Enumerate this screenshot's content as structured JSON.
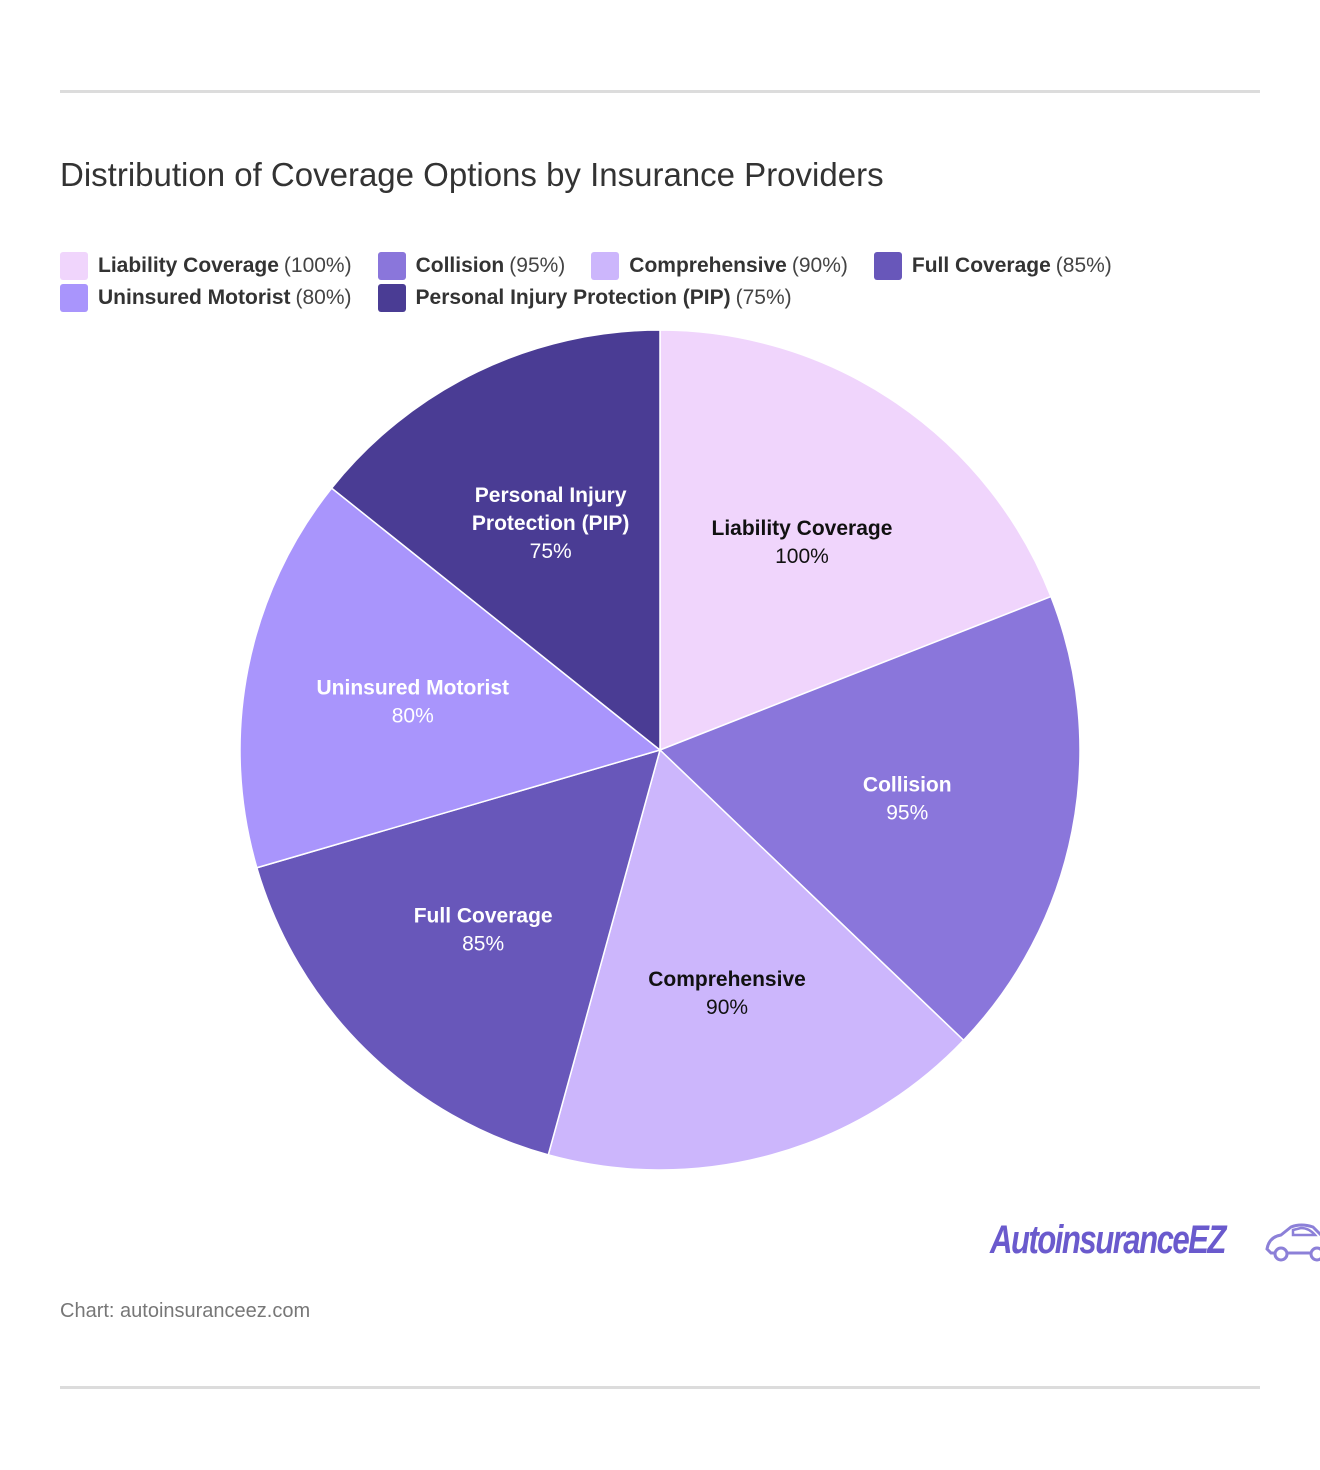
{
  "title": "Distribution of Coverage Options by Insurance Providers",
  "source": "Chart: autoinsuranceez.com",
  "logo": {
    "text": "AutoinsuranceEZ",
    "icon": "car-icon"
  },
  "chart_data": {
    "type": "pie",
    "title": "Distribution of Coverage Options by Insurance Providers",
    "legend_position": "top-left",
    "slices": [
      {
        "name": "Liability Coverage",
        "label_lines": [
          "Liability Coverage"
        ],
        "value": 100,
        "display": "100%",
        "color": "#f0d5fc",
        "text_color": "#111111"
      },
      {
        "name": "Collision",
        "label_lines": [
          "Collision"
        ],
        "value": 95,
        "display": "95%",
        "color": "#8a76db",
        "text_color": "#ffffff"
      },
      {
        "name": "Comprehensive",
        "label_lines": [
          "Comprehensive"
        ],
        "value": 90,
        "display": "90%",
        "color": "#ccb6fc",
        "text_color": "#111111"
      },
      {
        "name": "Full Coverage",
        "label_lines": [
          "Full Coverage"
        ],
        "value": 85,
        "display": "85%",
        "color": "#6857ba",
        "text_color": "#ffffff"
      },
      {
        "name": "Uninsured Motorist",
        "label_lines": [
          "Uninsured Motorist"
        ],
        "value": 80,
        "display": "80%",
        "color": "#a995fc",
        "text_color": "#ffffff"
      },
      {
        "name": "Personal Injury Protection (PIP)",
        "label_lines": [
          "Personal Injury",
          "Protection (PIP)"
        ],
        "value": 75,
        "display": "75%",
        "color": "#4a3c94",
        "text_color": "#ffffff"
      }
    ]
  },
  "legend": {
    "rows": [
      [
        {
          "name": "Liability Coverage",
          "value": "(100%)",
          "color": "#f0d5fc"
        },
        {
          "name": "Collision",
          "value": "(95%)",
          "color": "#8a76db"
        },
        {
          "name": "Comprehensive",
          "value": "(90%)",
          "color": "#ccb6fc"
        },
        {
          "name": "Full Coverage",
          "value": "(85%)",
          "color": "#6857ba"
        }
      ],
      [
        {
          "name": "Uninsured Motorist",
          "value": "(80%)",
          "color": "#a995fc"
        },
        {
          "name": "Personal Injury Protection (PIP)",
          "value": "(75%)",
          "color": "#4a3c94"
        }
      ]
    ]
  }
}
